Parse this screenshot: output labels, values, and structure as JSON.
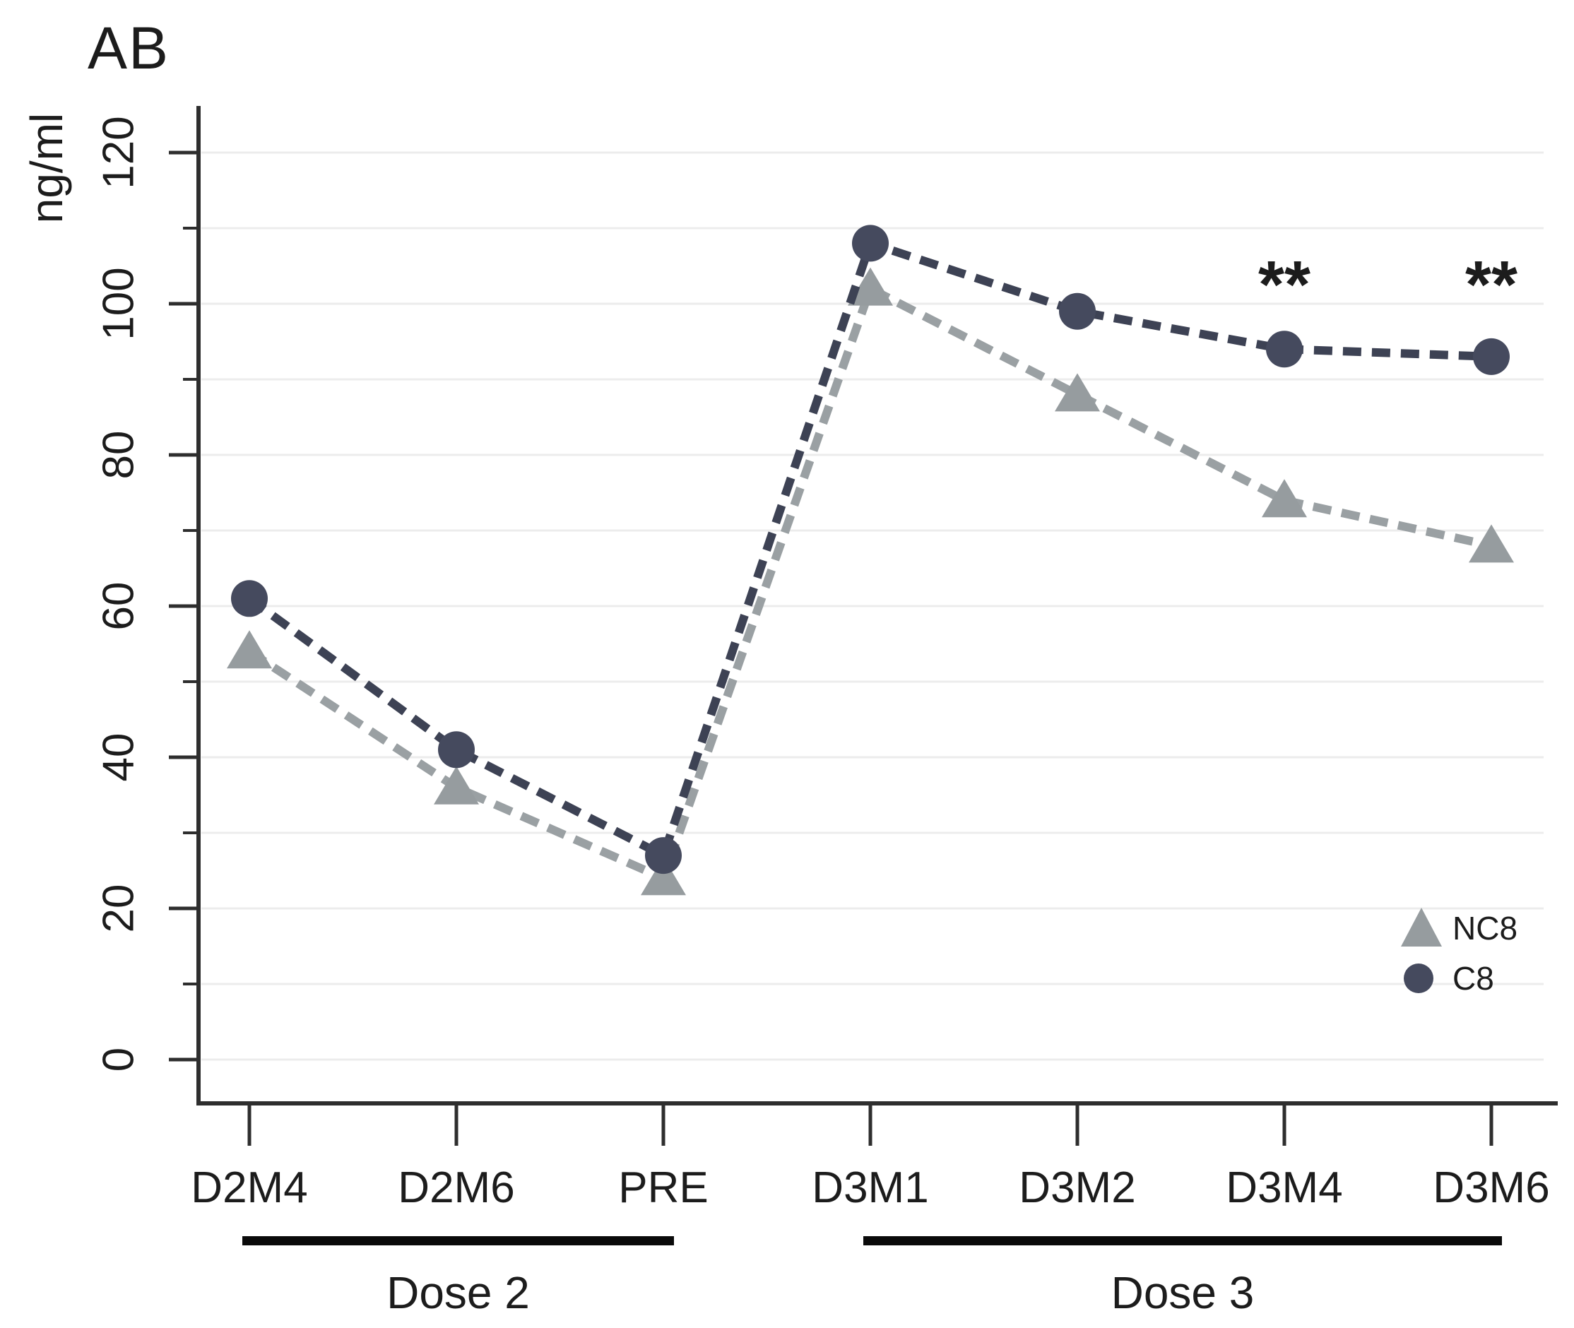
{
  "title": "AB",
  "chart_data": {
    "type": "line",
    "title": "AB",
    "ylabel": "ng/ml",
    "xlabel": "",
    "ylim": [
      0,
      120
    ],
    "y_major_ticks": [
      0,
      20,
      40,
      60,
      80,
      100,
      120
    ],
    "y_minor_ticks": [
      10,
      30,
      50,
      70,
      90,
      110
    ],
    "grid": true,
    "grid_interval": 10,
    "categories": [
      "D2M4",
      "D2M6",
      "PRE",
      "D3M1",
      "D3M2",
      "D3M4",
      "D3M6"
    ],
    "series": [
      {
        "name": "NC8",
        "marker": "triangle",
        "line_style": "dashed",
        "line_color": "#9aa0a3",
        "marker_color": "#969c9f",
        "values": [
          54,
          36,
          24,
          102,
          88,
          74,
          68
        ]
      },
      {
        "name": "C8",
        "marker": "circle",
        "line_style": "dashed",
        "line_color": "#3d4254",
        "marker_color": "#454a5e",
        "values": [
          61,
          41,
          27,
          108,
          99,
          94,
          93
        ]
      }
    ],
    "annotations": [
      {
        "text": "**",
        "category": "D3M4",
        "value": 104
      },
      {
        "text": "**",
        "category": "D3M6",
        "value": 104
      }
    ],
    "phase_bars": [
      {
        "label": "Dose 2",
        "from_category": "D2M4",
        "to_category": "PRE"
      },
      {
        "label": "Dose 3",
        "from_category": "D3M1",
        "to_category": "D3M6"
      }
    ],
    "legend": {
      "position": "inside-right-bottom",
      "items": [
        {
          "label": "NC8",
          "marker": "triangle"
        },
        {
          "label": "C8",
          "marker": "circle"
        }
      ]
    }
  },
  "colors": {
    "axis": "#2e2e2e",
    "grid": "#ececec",
    "text": "#1c1c1c",
    "phase_bar": "#0a0a0a",
    "nc8": "#9aa0a3",
    "c8": "#3d4254"
  }
}
